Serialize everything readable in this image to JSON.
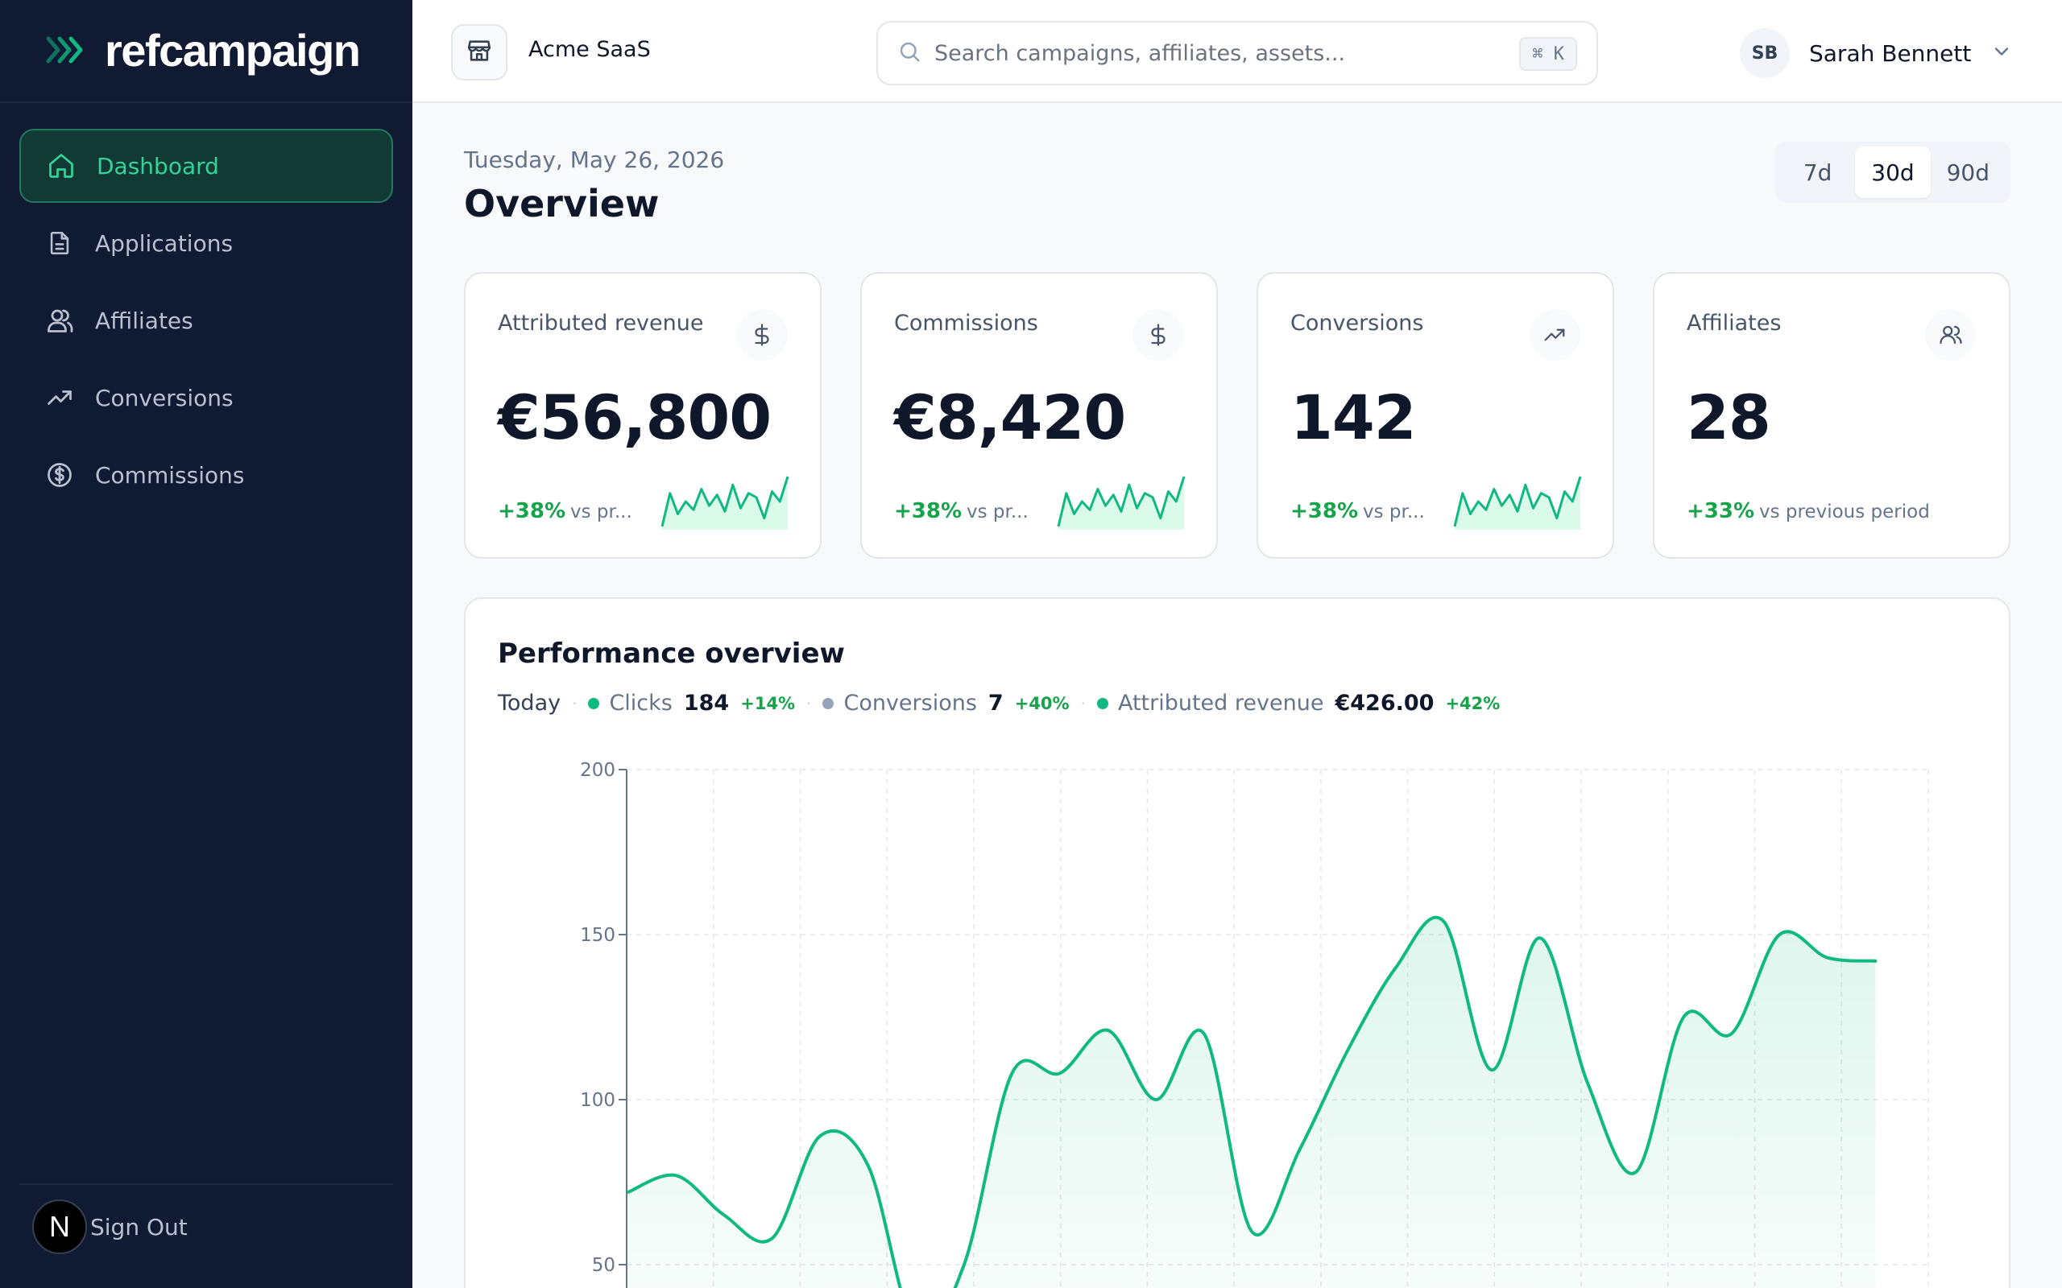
{
  "sidebar": {
    "logo_text": "refcampaign",
    "items": [
      {
        "label": "Dashboard",
        "icon": "home-icon",
        "active": true
      },
      {
        "label": "Applications",
        "icon": "file-icon",
        "active": false
      },
      {
        "label": "Affiliates",
        "icon": "users-icon",
        "active": false
      },
      {
        "label": "Conversions",
        "icon": "trending-up-icon",
        "active": false
      },
      {
        "label": "Commissions",
        "icon": "dollar-circle-icon",
        "active": false
      }
    ],
    "sign_out": "Sign Out",
    "badge_letter": "N"
  },
  "topbar": {
    "org_name": "Acme SaaS",
    "search_placeholder": "Search campaigns, affiliates, assets...",
    "shortcut": "⌘ K",
    "user_initials": "SB",
    "user_name": "Sarah Bennett"
  },
  "main": {
    "date": "Tuesday, May 26, 2026",
    "title": "Overview",
    "ranges": [
      {
        "label": "7d",
        "active": false
      },
      {
        "label": "30d",
        "active": true
      },
      {
        "label": "90d",
        "active": false
      }
    ]
  },
  "cards": [
    {
      "label": "Attributed revenue",
      "value": "€56,800",
      "delta": "+38%",
      "vs": "vs pr...",
      "icon": "dollar-icon",
      "spark": [
        20,
        60,
        35,
        50,
        40,
        65,
        45,
        58,
        38,
        70,
        42,
        60,
        55,
        30,
        62,
        50,
        80
      ]
    },
    {
      "label": "Commissions",
      "value": "€8,420",
      "delta": "+38%",
      "vs": "vs pr...",
      "icon": "dollar-icon",
      "spark": [
        20,
        60,
        35,
        50,
        40,
        65,
        45,
        58,
        38,
        70,
        42,
        60,
        55,
        30,
        62,
        50,
        80
      ]
    },
    {
      "label": "Conversions",
      "value": "142",
      "delta": "+38%",
      "vs": "vs pr...",
      "icon": "trending-up-icon",
      "spark": [
        20,
        60,
        35,
        50,
        40,
        65,
        45,
        58,
        38,
        70,
        42,
        60,
        55,
        30,
        62,
        50,
        80
      ]
    },
    {
      "label": "Affiliates",
      "value": "28",
      "delta": "+33%",
      "vs": "vs previous period",
      "icon": "users-icon",
      "spark": null
    }
  ],
  "performance": {
    "title": "Performance overview",
    "today_label": "Today",
    "metrics": [
      {
        "name": "Clicks",
        "value": "184",
        "delta": "+14%",
        "color": "#10b981"
      },
      {
        "name": "Conversions",
        "value": "7",
        "delta": "+40%",
        "color": "#94a3b8"
      },
      {
        "name": "Attributed revenue",
        "value": "€426.00",
        "delta": "+42%",
        "color": "#10b981"
      }
    ]
  },
  "chart_data": {
    "type": "area",
    "title": "",
    "xlabel": "",
    "ylabel": "",
    "ylim": [
      0,
      200
    ],
    "yticks": [
      50,
      100,
      150,
      200
    ],
    "grid": true,
    "series": [
      {
        "name": "Clicks",
        "color": "#10b981",
        "values": [
          72,
          77,
          65,
          58,
          89,
          80,
          30,
          50,
          108,
          108,
          121,
          100,
          120,
          60,
          85,
          115,
          140,
          154,
          109,
          149,
          105,
          78,
          125,
          120,
          150,
          143,
          142
        ]
      }
    ]
  }
}
